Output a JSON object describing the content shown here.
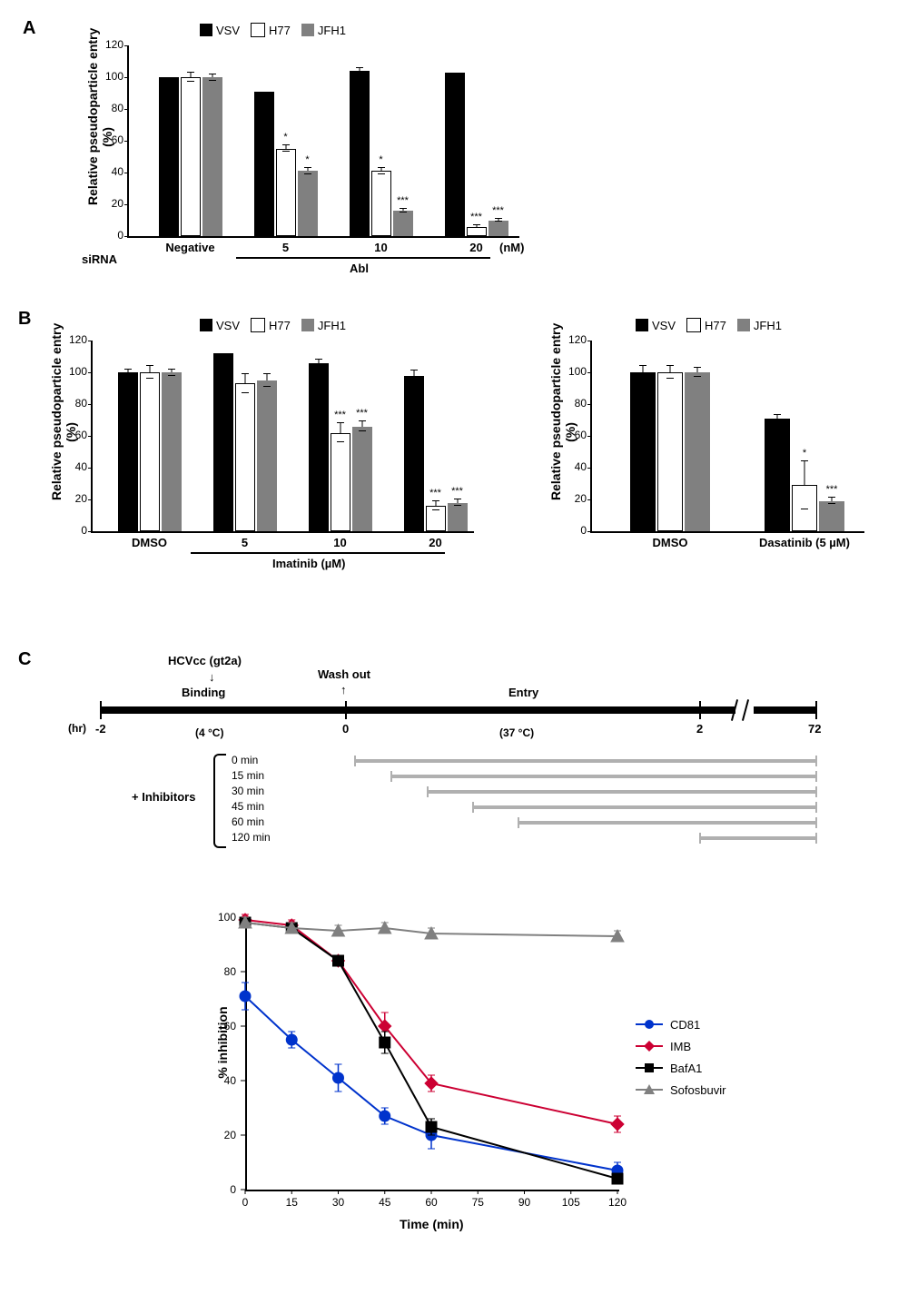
{
  "panels": {
    "A": "A",
    "B": "B",
    "C": "C"
  },
  "chartA": {
    "type": "bar",
    "y_label": "Relative pseudoparticle entry\n(%)",
    "ylim": [
      0,
      120
    ],
    "ytick_step": 20,
    "series": [
      {
        "name": "VSV",
        "color": "#000000"
      },
      {
        "name": "H77",
        "color": "#ffffff"
      },
      {
        "name": "JFH1",
        "color": "#808080"
      }
    ],
    "groups": [
      {
        "label": "Negative",
        "values": [
          100,
          100,
          100
        ],
        "err": [
          0,
          3,
          2
        ],
        "sig": [
          "",
          "",
          ""
        ]
      },
      {
        "label": "5",
        "values": [
          91,
          55,
          41
        ],
        "err": [
          0,
          2,
          2
        ],
        "sig": [
          "",
          "*",
          "*"
        ]
      },
      {
        "label": "10",
        "values": [
          104,
          41,
          16
        ],
        "err": [
          2,
          2,
          1
        ],
        "sig": [
          "",
          "*",
          "***"
        ]
      },
      {
        "label": "20",
        "values": [
          103,
          6,
          10
        ],
        "err": [
          0,
          1,
          1
        ],
        "sig": [
          "",
          "***",
          "***"
        ]
      }
    ],
    "x_footer_left": "siRNA",
    "x_footer_abl": "Abl",
    "x_unit": "(nM)"
  },
  "chartB1": {
    "type": "bar",
    "y_label": "Relative  pseudoparticle entry\n(%)",
    "ylim": [
      0,
      120
    ],
    "ytick_step": 20,
    "groups": [
      {
        "label": "DMSO",
        "values": [
          100,
          100,
          100
        ],
        "err": [
          2,
          4,
          2
        ],
        "sig": [
          "",
          "",
          ""
        ]
      },
      {
        "label": "5",
        "values": [
          112,
          93,
          95
        ],
        "err": [
          0,
          6,
          4
        ],
        "sig": [
          "",
          "",
          ""
        ]
      },
      {
        "label": "10",
        "values": [
          106,
          62,
          66
        ],
        "err": [
          2,
          6,
          3
        ],
        "sig": [
          "",
          "***",
          "***"
        ]
      },
      {
        "label": "20",
        "values": [
          98,
          16,
          18
        ],
        "err": [
          3,
          3,
          2
        ],
        "sig": [
          "",
          "***",
          "***"
        ]
      }
    ],
    "x_footer": "Imatinib (µM)"
  },
  "chartB2": {
    "type": "bar",
    "y_label": "Relative pseudoparticle entry\n(%)",
    "ylim": [
      0,
      120
    ],
    "ytick_step": 20,
    "groups": [
      {
        "label": "DMSO",
        "values": [
          100,
          100,
          100
        ],
        "err": [
          4,
          4,
          3
        ],
        "sig": [
          "",
          "",
          ""
        ]
      },
      {
        "label": "Dasatinib (5 µM)",
        "values": [
          71,
          29,
          19
        ],
        "err": [
          2,
          15,
          2
        ],
        "sig": [
          "",
          "*",
          "***"
        ]
      }
    ]
  },
  "timeline": {
    "hcvcc": "HCVcc (gt2a)",
    "binding": "Binding",
    "washout": "Wash out",
    "entry": "Entry",
    "hr": "(hr)",
    "t_neg2": "-2",
    "t_0": "0",
    "t_2": "2",
    "t_72": "72",
    "temp4": "(4 °C)",
    "temp37": "(37 °C)",
    "inhibitors_label": "+ Inhibitors",
    "times": [
      "0 min",
      "15 min",
      "30 min",
      "45 min",
      "60 min",
      "120 min"
    ]
  },
  "chartC": {
    "type": "line",
    "y_label": "% inhibition",
    "x_label": "Time (min)",
    "ylim": [
      0,
      100
    ],
    "ytick_step": 20,
    "xticks": [
      0,
      15,
      30,
      45,
      60,
      75,
      90,
      105,
      120
    ],
    "series": [
      {
        "name": "CD81",
        "color": "#0033cc",
        "marker": "circle",
        "points": [
          [
            0,
            71
          ],
          [
            15,
            55
          ],
          [
            30,
            41
          ],
          [
            45,
            27
          ],
          [
            60,
            20
          ],
          [
            120,
            7
          ]
        ],
        "err": [
          5,
          3,
          5,
          3,
          5,
          3
        ]
      },
      {
        "name": "IMB",
        "color": "#cc0033",
        "marker": "diamond",
        "points": [
          [
            0,
            99
          ],
          [
            15,
            97
          ],
          [
            30,
            84
          ],
          [
            45,
            60
          ],
          [
            60,
            39
          ],
          [
            120,
            24
          ]
        ],
        "err": [
          2,
          2,
          2,
          5,
          3,
          3
        ]
      },
      {
        "name": "BafA1",
        "color": "#000000",
        "marker": "square",
        "points": [
          [
            0,
            98
          ],
          [
            15,
            96
          ],
          [
            30,
            84
          ],
          [
            45,
            54
          ],
          [
            60,
            23
          ],
          [
            120,
            4
          ]
        ],
        "err": [
          2,
          2,
          2,
          4,
          3,
          2
        ]
      },
      {
        "name": "Sofosbuvir",
        "color": "#808080",
        "marker": "triangle",
        "points": [
          [
            0,
            98
          ],
          [
            15,
            96
          ],
          [
            30,
            95
          ],
          [
            45,
            96
          ],
          [
            60,
            94
          ],
          [
            120,
            93
          ]
        ],
        "err": [
          2,
          2,
          2,
          2,
          2,
          2
        ]
      }
    ]
  },
  "legend_series": {
    "vsv": "VSV",
    "h77": "H77",
    "jfh1": "JFH1"
  }
}
